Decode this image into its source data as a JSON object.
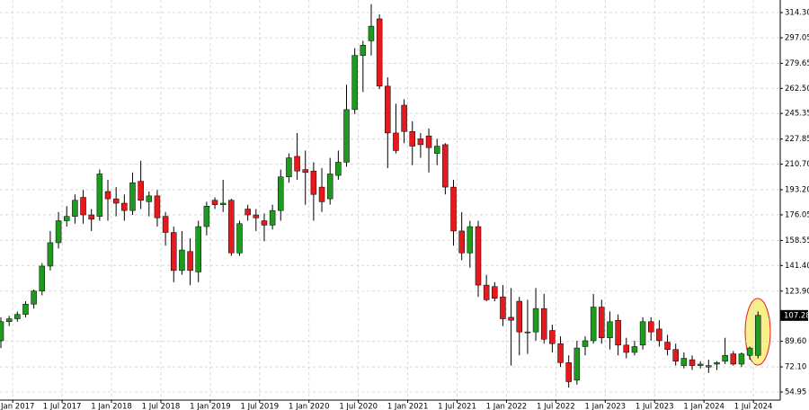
{
  "chart_data": {
    "type": "candlestick",
    "categories": [
      null,
      "Jan 2017",
      null,
      null,
      null,
      null,
      null,
      "1 Jul 2017",
      null,
      null,
      null,
      null,
      null,
      "1 Jan 2018",
      null,
      null,
      null,
      null,
      null,
      "1 Jul 2018",
      null,
      null,
      null,
      null,
      null,
      "1 Jan 2019",
      null,
      null,
      null,
      null,
      null,
      "1 Jul 2019",
      null,
      null,
      null,
      null,
      null,
      "1 Jan 2020",
      null,
      null,
      null,
      null,
      null,
      "1 Jul 2020",
      null,
      null,
      null,
      null,
      null,
      "1 Jan 2021",
      null,
      null,
      null,
      null,
      null,
      "1 Jul 2021",
      null,
      null,
      null,
      null,
      null,
      "1 Jan 2022",
      null,
      null,
      null,
      null,
      null,
      "1 Jul 2022",
      null,
      null,
      null,
      null,
      null,
      "1 Jan 2023",
      null,
      null,
      null,
      null,
      null,
      "1 Jul 2023",
      null,
      null,
      null,
      null,
      null,
      "1 Jan 2024",
      null,
      null,
      null,
      null,
      null,
      "1 Jul 2024",
      null
    ],
    "open": [
      90,
      103,
      105,
      108,
      115,
      124,
      141,
      157,
      172,
      175,
      188,
      176,
      175,
      192,
      187,
      184,
      179,
      199,
      185,
      189,
      175,
      164,
      138,
      151,
      137,
      168,
      186,
      183,
      186,
      150,
      180,
      176,
      172,
      169,
      179,
      202,
      216,
      207,
      206,
      195,
      187,
      203,
      212,
      248,
      285,
      295,
      310,
      264,
      232,
      251,
      233,
      228,
      230,
      218,
      224,
      195,
      165,
      150,
      168,
      128,
      127,
      120,
      106,
      117,
      96,
      96,
      112,
      97,
      88,
      75,
      63,
      86,
      90,
      113,
      92,
      104,
      87,
      82,
      87,
      103,
      98,
      89,
      84,
      73,
      77,
      73,
      72,
      74,
      76,
      81,
      74,
      80,
      80
    ],
    "high": [
      106,
      107,
      110,
      117,
      125,
      143,
      165,
      178,
      182,
      190,
      193,
      180,
      207,
      200,
      195,
      190,
      205,
      213,
      192,
      193,
      178,
      168,
      165,
      160,
      172,
      185,
      188,
      200,
      187,
      172,
      183,
      180,
      177,
      183,
      207,
      218,
      232,
      220,
      212,
      208,
      215,
      220,
      265,
      290,
      295,
      320,
      313,
      270,
      252,
      255,
      240,
      232,
      235,
      228,
      225,
      200,
      178,
      172,
      172,
      135,
      130,
      128,
      126,
      120,
      118,
      126,
      122,
      101,
      93,
      80,
      90,
      93,
      122,
      118,
      110,
      108,
      92,
      90,
      106,
      106,
      104,
      94,
      88,
      82,
      80,
      76,
      77,
      76,
      92,
      83,
      82,
      86,
      110
    ],
    "low": [
      85,
      100,
      103,
      106,
      112,
      121,
      138,
      153,
      168,
      170,
      170,
      165,
      172,
      172,
      175,
      172,
      176,
      180,
      175,
      168,
      155,
      130,
      135,
      128,
      130,
      162,
      180,
      178,
      148,
      148,
      172,
      165,
      158,
      166,
      172,
      198,
      200,
      183,
      172,
      178,
      183,
      200,
      209,
      245,
      260,
      285,
      262,
      208,
      218,
      225,
      210,
      215,
      205,
      210,
      190,
      155,
      145,
      140,
      120,
      117,
      117,
      100,
      73,
      80,
      81,
      90,
      88,
      82,
      72,
      58,
      60,
      80,
      88,
      88,
      84,
      80,
      78,
      80,
      84,
      90,
      86,
      80,
      73,
      71,
      70,
      71,
      68,
      70,
      74,
      73,
      72,
      77,
      78
    ],
    "close": [
      103,
      105,
      108,
      115,
      124,
      141,
      157,
      172,
      175,
      186,
      176,
      173,
      204,
      187,
      184,
      179,
      198,
      186,
      189,
      174,
      164,
      138,
      152,
      138,
      168,
      182,
      183,
      184,
      150,
      170,
      176,
      174,
      169,
      179,
      202,
      215,
      206,
      205,
      190,
      185,
      204,
      212,
      248,
      285,
      292,
      305,
      264,
      232,
      220,
      233,
      223,
      224,
      222,
      223,
      195,
      165,
      150,
      168,
      128,
      118,
      119,
      105,
      104,
      96,
      96,
      112,
      91,
      88,
      75,
      62,
      85,
      90,
      113,
      92,
      103,
      87,
      82,
      86,
      103,
      96,
      90,
      84,
      76,
      78,
      73,
      74,
      73,
      75,
      80,
      74,
      81,
      85,
      107.28
    ],
    "up_color": "#1e9b1e",
    "down_color": "#e8191c",
    "ylim": [
      49.4,
      322.9
    ],
    "yticks": [
      {
        "value": 54.95,
        "label": "54.95"
      },
      {
        "value": 72.1,
        "label": "72.10"
      },
      {
        "value": 89.6,
        "label": "89.60"
      },
      {
        "value": 123.9,
        "label": "123.90"
      },
      {
        "value": 141.4,
        "label": "141.40"
      },
      {
        "value": 158.55,
        "label": "158.55"
      },
      {
        "value": 176.05,
        "label": "176.05"
      },
      {
        "value": 193.2,
        "label": "193.20"
      },
      {
        "value": 210.7,
        "label": "210.70"
      },
      {
        "value": 227.85,
        "label": "227.85"
      },
      {
        "value": 245.35,
        "label": "245.35"
      },
      {
        "value": 262.5,
        "label": "262.50"
      },
      {
        "value": 279.65,
        "label": "279.65"
      },
      {
        "value": 297.05,
        "label": "297.05"
      },
      {
        "value": 314.3,
        "label": "314.30"
      }
    ],
    "grid": true
  }
}
